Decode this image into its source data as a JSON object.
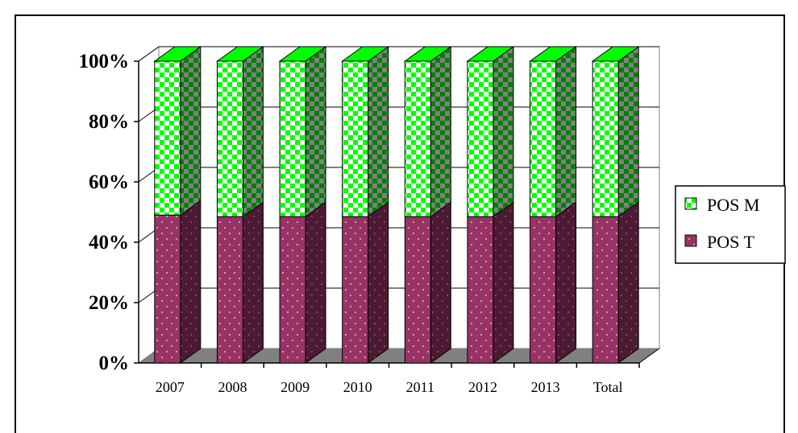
{
  "chart_data": {
    "type": "bar",
    "stacked": true,
    "percent": true,
    "three_d": true,
    "categories": [
      "2007",
      "2008",
      "2009",
      "2010",
      "2011",
      "2012",
      "2013",
      "Total"
    ],
    "series": [
      {
        "name": "POS T",
        "values": [
          49,
          48.5,
          48.5,
          48.5,
          48.5,
          48.5,
          48.5,
          48.5
        ],
        "color": "#993366"
      },
      {
        "name": "POS M",
        "values": [
          51,
          51.5,
          51.5,
          51.5,
          51.5,
          51.5,
          51.5,
          51.5
        ],
        "color": "#00ff00"
      }
    ],
    "y_ticks": [
      "0%",
      "20%",
      "40%",
      "60%",
      "80%",
      "100%"
    ],
    "ylim": [
      0,
      100
    ],
    "grid": true,
    "legend": "right",
    "title": "",
    "xlabel": "",
    "ylabel": ""
  }
}
